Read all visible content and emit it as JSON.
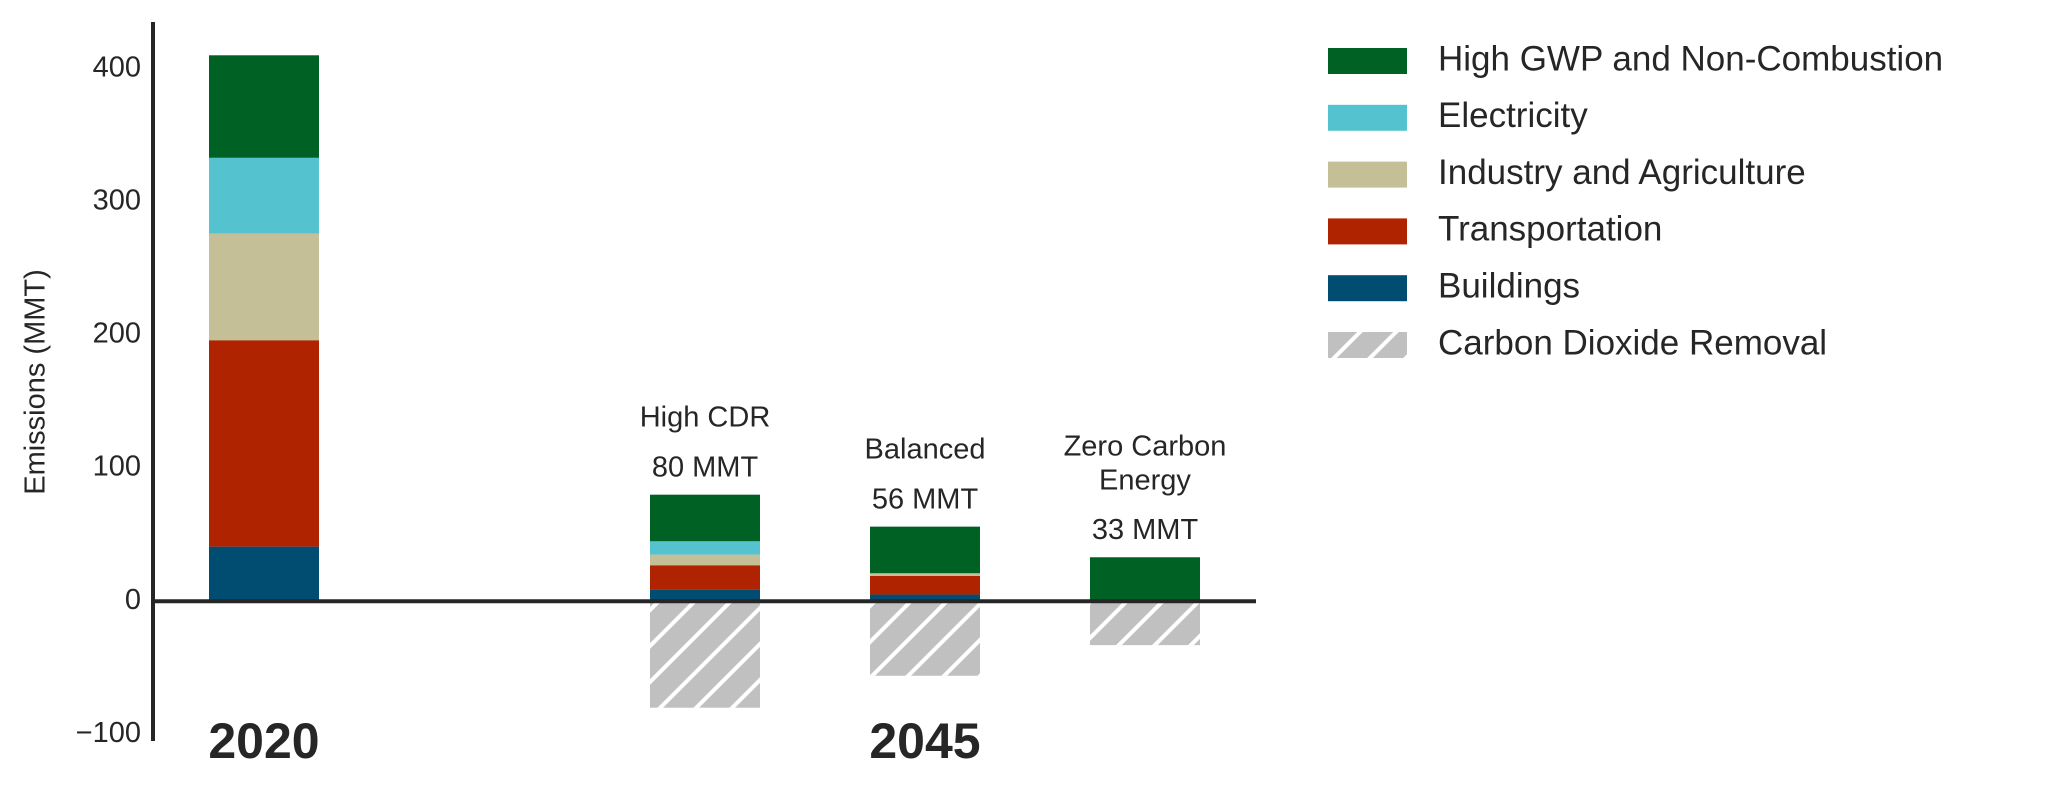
{
  "chart_data": {
    "type": "stacked_bar",
    "y_label": "Emissions (MMT)",
    "categories": [
      null,
      "High CDR",
      "Balanced",
      "Zero Carbon Energy"
    ],
    "totals": [
      null,
      80,
      56,
      33
    ],
    "value_labels": [
      null,
      "80 MMT",
      "56 MMT",
      "33 MMT"
    ],
    "group_labels": [
      "2020",
      "2045"
    ],
    "series": [
      {
        "name": "High GWP and Non-Combustion",
        "color": "#006125",
        "values": [
          77,
          35,
          35,
          33
        ]
      },
      {
        "name": "Electricity",
        "color": "#55c2d0",
        "values": [
          57,
          10,
          0,
          0
        ]
      },
      {
        "name": "Industry and Agriculture",
        "color": "#c5bf98",
        "values": [
          80,
          8,
          2,
          0
        ]
      },
      {
        "name": "Transportation",
        "color": "#b02300",
        "values": [
          155,
          18,
          14,
          0
        ]
      },
      {
        "name": "Buildings",
        "color": "#004d71",
        "values": [
          41,
          9,
          5,
          0
        ]
      },
      {
        "name": "Carbon Dioxide Removal",
        "color": "#c0c0c0",
        "hatch": true,
        "values": [
          null,
          -80,
          -56,
          -33
        ]
      }
    ],
    "ylim": [
      -105,
      435
    ],
    "yticks": [
      {
        "value": -100,
        "label": "−100"
      },
      0,
      100,
      200,
      300,
      400
    ]
  }
}
